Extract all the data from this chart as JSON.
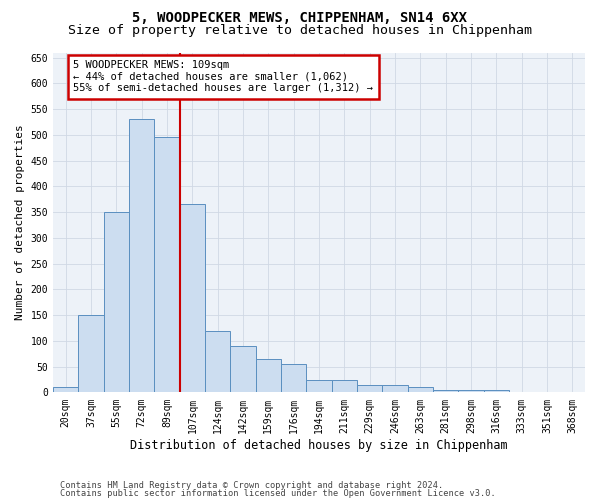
{
  "title": "5, WOODPECKER MEWS, CHIPPENHAM, SN14 6XX",
  "subtitle": "Size of property relative to detached houses in Chippenham",
  "xlabel": "Distribution of detached houses by size in Chippenham",
  "ylabel": "Number of detached properties",
  "footer_line1": "Contains HM Land Registry data © Crown copyright and database right 2024.",
  "footer_line2": "Contains public sector information licensed under the Open Government Licence v3.0.",
  "bar_labels": [
    "20sqm",
    "37sqm",
    "55sqm",
    "72sqm",
    "89sqm",
    "107sqm",
    "124sqm",
    "142sqm",
    "159sqm",
    "176sqm",
    "194sqm",
    "211sqm",
    "229sqm",
    "246sqm",
    "263sqm",
    "281sqm",
    "298sqm",
    "316sqm",
    "333sqm",
    "351sqm",
    "368sqm"
  ],
  "bar_values": [
    10,
    150,
    350,
    530,
    495,
    365,
    120,
    90,
    65,
    55,
    25,
    25,
    15,
    15,
    10,
    5,
    5,
    5,
    0,
    0,
    0
  ],
  "bar_color": "#ccddf0",
  "bar_edge_color": "#5a8fc0",
  "grid_color": "#d0d8e4",
  "background_color": "#edf2f8",
  "vline_color": "#cc0000",
  "vline_xindex": 4.5,
  "annotation_text": "5 WOODPECKER MEWS: 109sqm\n← 44% of detached houses are smaller (1,062)\n55% of semi-detached houses are larger (1,312) →",
  "annotation_edge_color": "#cc0000",
  "ylim": [
    0,
    660
  ],
  "yticks": [
    0,
    50,
    100,
    150,
    200,
    250,
    300,
    350,
    400,
    450,
    500,
    550,
    600,
    650
  ],
  "title_fontsize": 10,
  "subtitle_fontsize": 9.5,
  "ylabel_fontsize": 8,
  "xlabel_fontsize": 8.5,
  "tick_fontsize": 7,
  "footer_fontsize": 6.2,
  "ann_fontsize": 7.5
}
